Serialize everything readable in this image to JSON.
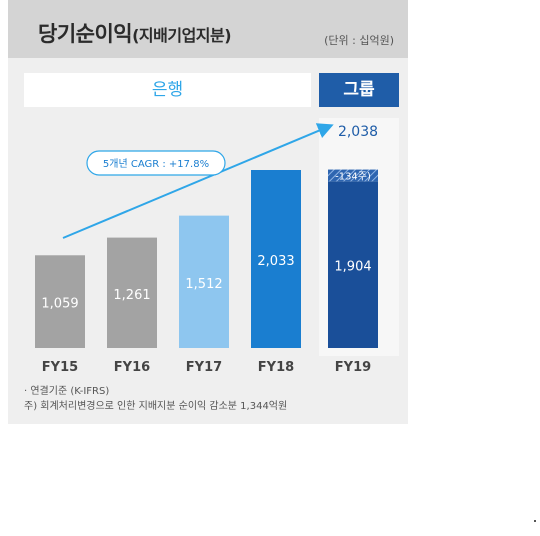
{
  "header": {
    "title": "당기순이익",
    "title_sub": "(지배기업지분)",
    "unit": "(단위 : 십억원)"
  },
  "segments": {
    "bank": "은행",
    "group": "그룹"
  },
  "cagr_label": "5개년 CAGR : +17.8%",
  "notes": {
    "line1": "·  연결기준 (K-IFRS)",
    "line2": "주) 회계처리변경으로 인한 지배지분 순이익 감소분 1,344억원"
  },
  "chart_data": {
    "type": "bar",
    "categories": [
      "FY15",
      "FY16",
      "FY17",
      "FY18",
      "FY19"
    ],
    "values": [
      1059,
      1261,
      1512,
      2033,
      1904
    ],
    "value_labels": [
      "1,059",
      "1,261",
      "1,512",
      "2,033",
      "1,904"
    ],
    "stacked_adjustment": {
      "category": "FY19",
      "value": 134,
      "label": "-134주)"
    },
    "total_label": "2,038",
    "total_value": 2038,
    "colors": [
      "#a3a3a3",
      "#a3a3a3",
      "#8ec6ef",
      "#1a7ed0",
      "#1a4f99"
    ],
    "ylim": [
      0,
      2100
    ]
  }
}
